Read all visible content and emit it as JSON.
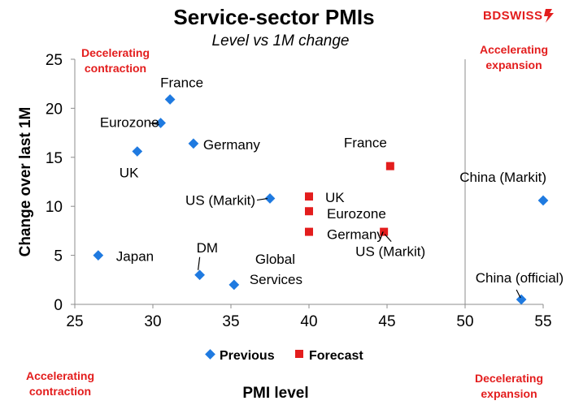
{
  "logo": {
    "text": "BDSWISS",
    "color": "#e31d1d"
  },
  "chart_data": {
    "type": "scatter",
    "title": "Service-sector PMIs",
    "subtitle": "Level vs 1M change",
    "xlabel": "PMI level",
    "ylabel": "Change over last 1M",
    "xlim": [
      25,
      55
    ],
    "ylim": [
      0,
      25
    ],
    "xticks": [
      25,
      30,
      35,
      40,
      45,
      50,
      55
    ],
    "yticks": [
      0,
      5,
      10,
      15,
      20,
      25
    ],
    "divider_x": 50,
    "grid": false,
    "legend_position": "bottom",
    "quadrant_labels": {
      "top_left": [
        "Decelerating",
        "contraction"
      ],
      "top_right": [
        "Accelerating",
        "expansion"
      ],
      "bottom_left": [
        "Accelerating",
        "contraction"
      ],
      "bottom_right": [
        "Decelerating",
        "expansion"
      ]
    },
    "colors": {
      "previous": "#1f7ae0",
      "forecast": "#e31d1d",
      "quadrant": "#e31d1d"
    },
    "series": [
      {
        "name": "Previous",
        "marker": "diamond",
        "points": [
          {
            "label": "France",
            "x": 31.1,
            "y": 20.9
          },
          {
            "label": "Eurozone",
            "x": 30.5,
            "y": 18.5
          },
          {
            "label": "Germany",
            "x": 32.6,
            "y": 16.4
          },
          {
            "label": "UK",
            "x": 29.0,
            "y": 15.6
          },
          {
            "label": "US (Markit)",
            "x": 37.5,
            "y": 10.8
          },
          {
            "label": "Japan",
            "x": 26.5,
            "y": 5.0
          },
          {
            "label": "DM",
            "x": 33.0,
            "y": 3.0
          },
          {
            "label": "Global Services",
            "x": 35.2,
            "y": 2.0
          },
          {
            "label": "China (Markit)",
            "x": 55.0,
            "y": 10.6
          },
          {
            "label": "China (official)",
            "x": 53.6,
            "y": 0.5
          }
        ]
      },
      {
        "name": "Forecast",
        "marker": "square",
        "points": [
          {
            "label": "France",
            "x": 45.2,
            "y": 14.1
          },
          {
            "label": "UK",
            "x": 40.0,
            "y": 11.0
          },
          {
            "label": "Eurozone",
            "x": 40.0,
            "y": 9.5
          },
          {
            "label": "Germany",
            "x": 40.0,
            "y": 7.4
          },
          {
            "label": "US (Markit)",
            "x": 44.8,
            "y": 7.4
          }
        ]
      }
    ]
  }
}
